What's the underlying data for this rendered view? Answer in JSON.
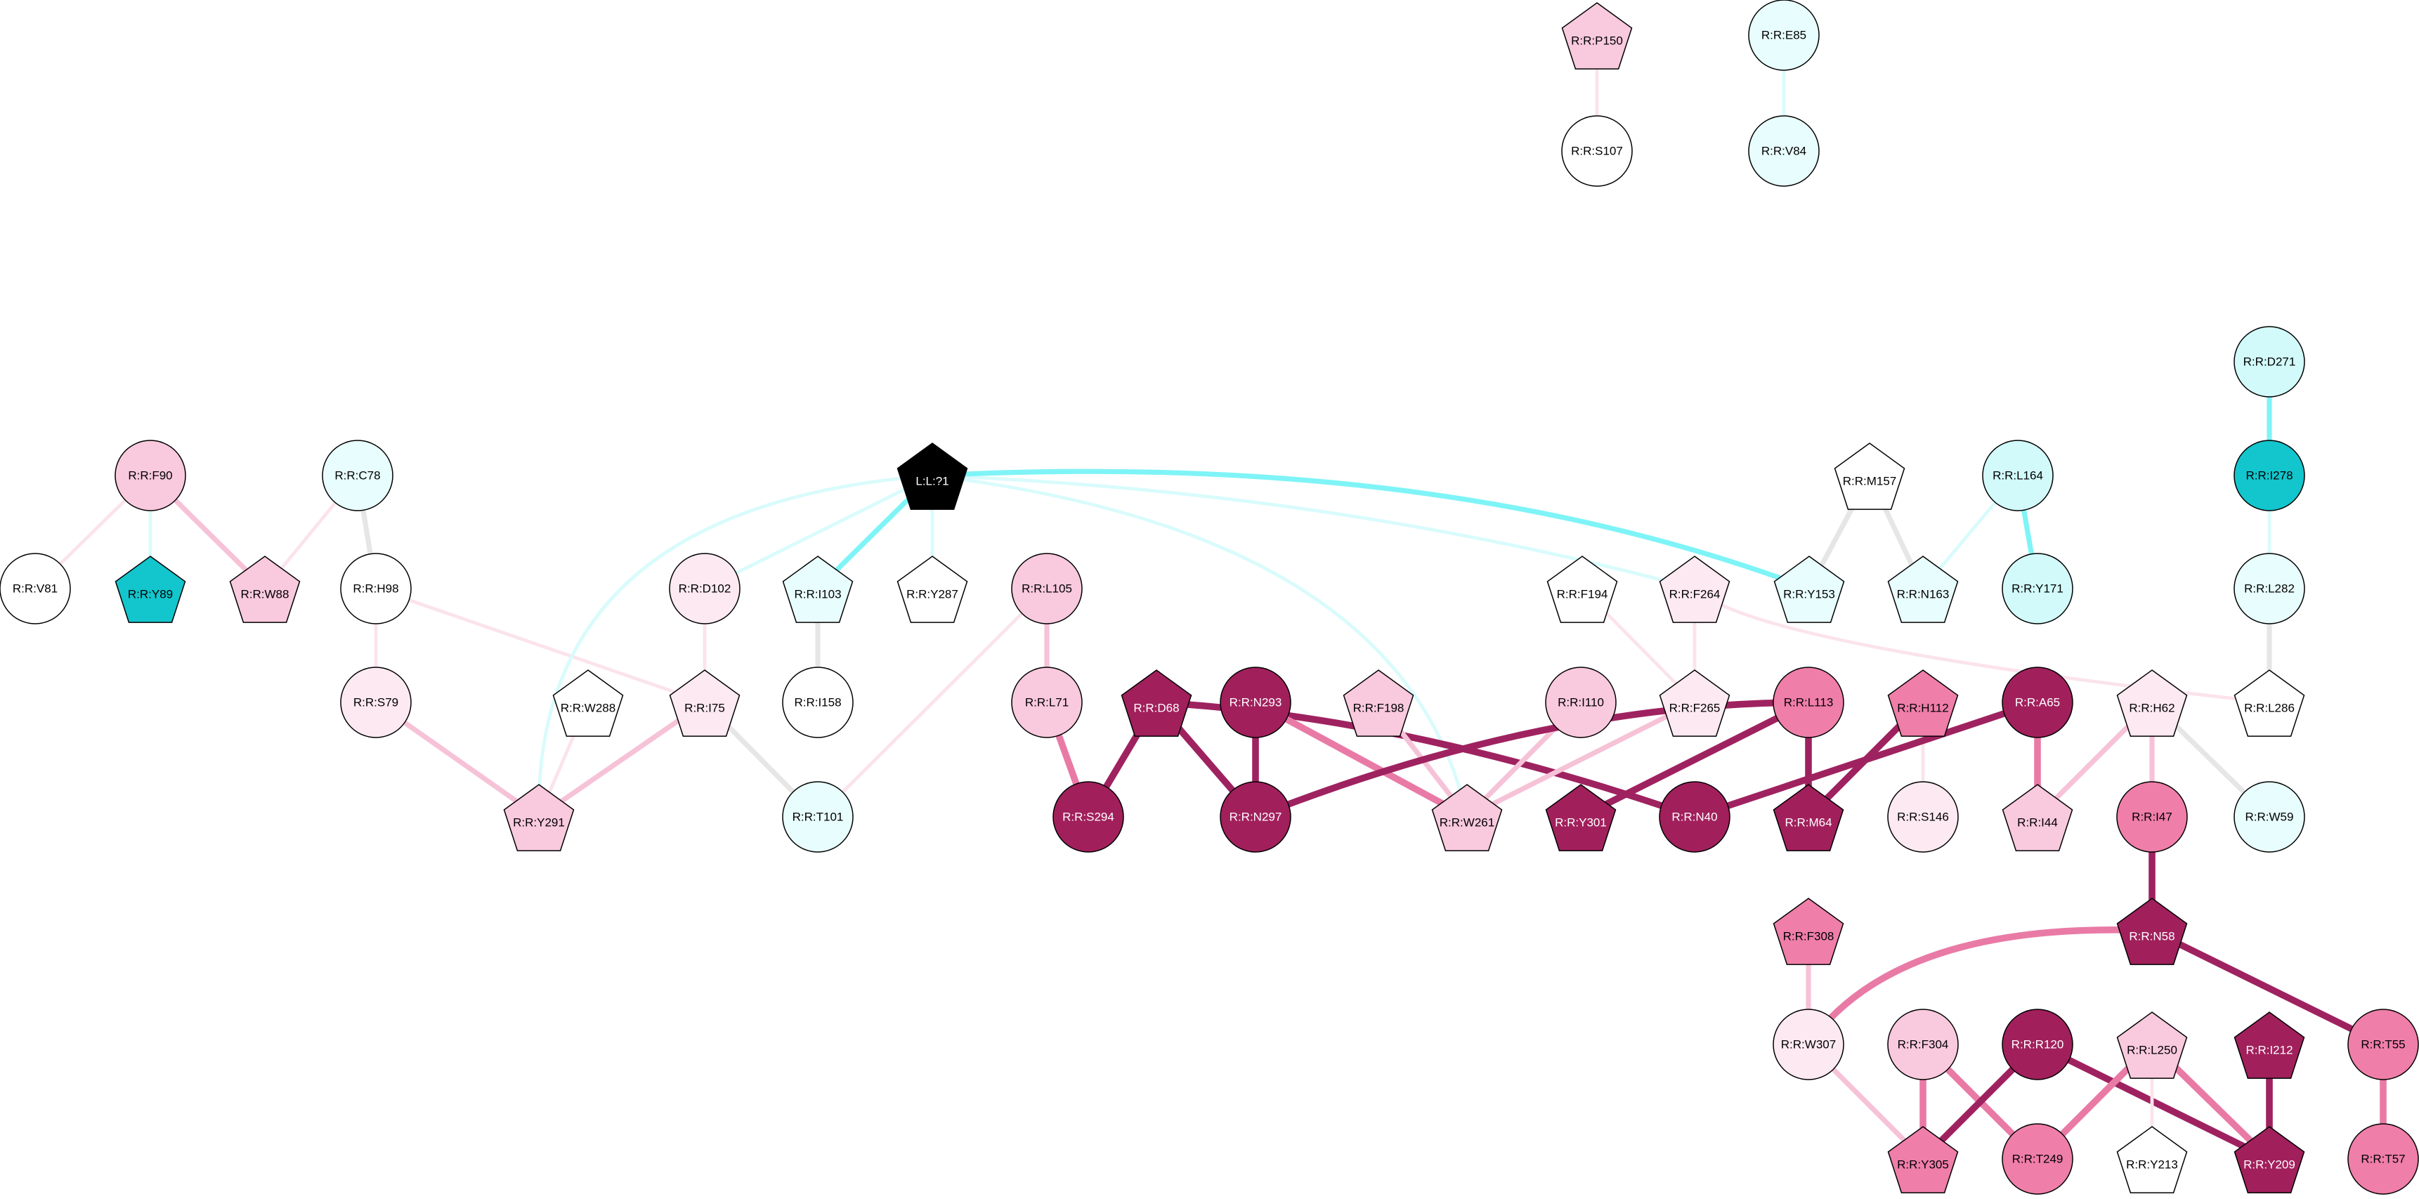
{
  "colors": {
    "white": "#ffffff",
    "pink_pale": "#fde9f1",
    "pink_light": "#f9c9dd",
    "pink_mid": "#ef7ea9",
    "magenta_dark": "#a1205c",
    "cyan_pale": "#e8fdfd",
    "cyan_light": "#d2fafa",
    "teal": "#13c5cc",
    "black": "#000000",
    "edge_gray": "#e6e6e6",
    "edge_cyan": "#7ff4f7",
    "edge_cyan_pale": "#d9fbfc",
    "edge_pink_pale": "#fbe3ec",
    "edge_pink_light": "#f6c2d7",
    "edge_pink_mid": "#e97aa6",
    "edge_magenta": "#9f2260"
  },
  "nodes": [
    {
      "id": "P150",
      "label": "R:R:P150",
      "shape": "pentagon",
      "fill": "pink_light"
    },
    {
      "id": "E85",
      "label": "R:R:E85",
      "shape": "circle",
      "fill": "cyan_pale"
    },
    {
      "id": "S107",
      "label": "R:R:S107",
      "shape": "circle",
      "fill": "white"
    },
    {
      "id": "V84",
      "label": "R:R:V84",
      "shape": "circle",
      "fill": "cyan_pale"
    },
    {
      "id": "D271",
      "label": "R:R:D271",
      "shape": "circle",
      "fill": "cyan_light"
    },
    {
      "id": "I278",
      "label": "R:R:I278",
      "shape": "circle",
      "fill": "teal"
    },
    {
      "id": "L282",
      "label": "R:R:L282",
      "shape": "circle",
      "fill": "cyan_pale"
    },
    {
      "id": "L286",
      "label": "R:R:L286",
      "shape": "pentagon",
      "fill": "white"
    },
    {
      "id": "F90",
      "label": "R:R:F90",
      "shape": "circle",
      "fill": "pink_light"
    },
    {
      "id": "C78",
      "label": "R:R:C78",
      "shape": "circle",
      "fill": "cyan_pale"
    },
    {
      "id": "V81",
      "label": "R:R:V81",
      "shape": "circle",
      "fill": "white"
    },
    {
      "id": "Y89",
      "label": "R:R:Y89",
      "shape": "pentagon",
      "fill": "teal"
    },
    {
      "id": "W88",
      "label": "R:R:W88",
      "shape": "pentagon",
      "fill": "pink_light"
    },
    {
      "id": "H98",
      "label": "R:R:H98",
      "shape": "circle",
      "fill": "white"
    },
    {
      "id": "S79",
      "label": "R:R:S79",
      "shape": "circle",
      "fill": "pink_pale"
    },
    {
      "id": "W288",
      "label": "R:R:W288",
      "shape": "pentagon",
      "fill": "white"
    },
    {
      "id": "I75",
      "label": "R:R:I75",
      "shape": "pentagon",
      "fill": "pink_pale"
    },
    {
      "id": "Y291",
      "label": "R:R:Y291",
      "shape": "pentagon",
      "fill": "pink_light"
    },
    {
      "id": "T101",
      "label": "R:R:T101",
      "shape": "circle",
      "fill": "cyan_pale"
    },
    {
      "id": "L1",
      "label": "L:L:?1",
      "shape": "pentagon",
      "fill": "black"
    },
    {
      "id": "D102",
      "label": "R:R:D102",
      "shape": "circle",
      "fill": "pink_pale"
    },
    {
      "id": "I103",
      "label": "R:R:I103",
      "shape": "pentagon",
      "fill": "cyan_pale"
    },
    {
      "id": "Y287",
      "label": "R:R:Y287",
      "shape": "pentagon",
      "fill": "white"
    },
    {
      "id": "I158",
      "label": "R:R:I158",
      "shape": "circle",
      "fill": "white"
    },
    {
      "id": "L105",
      "label": "R:R:L105",
      "shape": "circle",
      "fill": "pink_light"
    },
    {
      "id": "L71",
      "label": "R:R:L71",
      "shape": "circle",
      "fill": "pink_light"
    },
    {
      "id": "S294",
      "label": "R:R:S294",
      "shape": "circle",
      "fill": "magenta_dark"
    },
    {
      "id": "D68",
      "label": "R:R:D68",
      "shape": "pentagon",
      "fill": "magenta_dark"
    },
    {
      "id": "N293",
      "label": "R:R:N293",
      "shape": "circle",
      "fill": "magenta_dark"
    },
    {
      "id": "N297",
      "label": "R:R:N297",
      "shape": "circle",
      "fill": "magenta_dark"
    },
    {
      "id": "F198",
      "label": "R:R:F198",
      "shape": "pentagon",
      "fill": "pink_light"
    },
    {
      "id": "W261",
      "label": "R:R:W261",
      "shape": "pentagon",
      "fill": "pink_light"
    },
    {
      "id": "I110",
      "label": "R:R:I110",
      "shape": "circle",
      "fill": "pink_light"
    },
    {
      "id": "F194",
      "label": "R:R:F194",
      "shape": "pentagon",
      "fill": "white"
    },
    {
      "id": "F264",
      "label": "R:R:F264",
      "shape": "pentagon",
      "fill": "pink_pale"
    },
    {
      "id": "F265",
      "label": "R:R:F265",
      "shape": "pentagon",
      "fill": "pink_pale"
    },
    {
      "id": "M157",
      "label": "R:R:M157",
      "shape": "pentagon",
      "fill": "white"
    },
    {
      "id": "Y153",
      "label": "R:R:Y153",
      "shape": "pentagon",
      "fill": "cyan_pale"
    },
    {
      "id": "N163",
      "label": "R:R:N163",
      "shape": "pentagon",
      "fill": "cyan_pale"
    },
    {
      "id": "L164",
      "label": "R:R:L164",
      "shape": "circle",
      "fill": "cyan_light"
    },
    {
      "id": "Y171",
      "label": "R:R:Y171",
      "shape": "circle",
      "fill": "cyan_light"
    },
    {
      "id": "L113",
      "label": "R:R:L113",
      "shape": "circle",
      "fill": "pink_mid"
    },
    {
      "id": "Y301",
      "label": "R:R:Y301",
      "shape": "pentagon",
      "fill": "magenta_dark"
    },
    {
      "id": "N40",
      "label": "R:R:N40",
      "shape": "circle",
      "fill": "magenta_dark"
    },
    {
      "id": "H112",
      "label": "R:R:H112",
      "shape": "pentagon",
      "fill": "pink_mid"
    },
    {
      "id": "M64",
      "label": "R:R:M64",
      "shape": "pentagon",
      "fill": "magenta_dark"
    },
    {
      "id": "S146",
      "label": "R:R:S146",
      "shape": "circle",
      "fill": "pink_pale"
    },
    {
      "id": "A65",
      "label": "R:R:A65",
      "shape": "circle",
      "fill": "magenta_dark"
    },
    {
      "id": "I44",
      "label": "R:R:I44",
      "shape": "pentagon",
      "fill": "pink_light"
    },
    {
      "id": "H62",
      "label": "R:R:H62",
      "shape": "pentagon",
      "fill": "pink_pale"
    },
    {
      "id": "I47",
      "label": "R:R:I47",
      "shape": "circle",
      "fill": "pink_mid"
    },
    {
      "id": "W59",
      "label": "R:R:W59",
      "shape": "circle",
      "fill": "cyan_pale"
    },
    {
      "id": "N58",
      "label": "R:R:N58",
      "shape": "pentagon",
      "fill": "magenta_dark"
    },
    {
      "id": "F308",
      "label": "R:R:F308",
      "shape": "pentagon",
      "fill": "pink_mid"
    },
    {
      "id": "W307",
      "label": "R:R:W307",
      "shape": "circle",
      "fill": "pink_pale"
    },
    {
      "id": "F304",
      "label": "R:R:F304",
      "shape": "circle",
      "fill": "pink_light"
    },
    {
      "id": "R120",
      "label": "R:R:R120",
      "shape": "circle",
      "fill": "magenta_dark"
    },
    {
      "id": "L250",
      "label": "R:R:L250",
      "shape": "pentagon",
      "fill": "pink_light"
    },
    {
      "id": "I212",
      "label": "R:R:I212",
      "shape": "pentagon",
      "fill": "magenta_dark"
    },
    {
      "id": "T55",
      "label": "R:R:T55",
      "shape": "circle",
      "fill": "pink_mid"
    },
    {
      "id": "Y305",
      "label": "R:R:Y305",
      "shape": "pentagon",
      "fill": "pink_mid"
    },
    {
      "id": "T249",
      "label": "R:R:T249",
      "shape": "circle",
      "fill": "pink_mid"
    },
    {
      "id": "Y213",
      "label": "R:R:Y213",
      "shape": "pentagon",
      "fill": "white"
    },
    {
      "id": "Y209",
      "label": "R:R:Y209",
      "shape": "pentagon",
      "fill": "magenta_dark"
    },
    {
      "id": "T57",
      "label": "R:R:T57",
      "shape": "circle",
      "fill": "pink_mid"
    }
  ],
  "edges": [
    {
      "from": "P150",
      "to": "S107",
      "color": "edge_pink_pale",
      "weight": 2
    },
    {
      "from": "E85",
      "to": "V84",
      "color": "edge_cyan_pale",
      "weight": 2
    },
    {
      "from": "D271",
      "to": "I278",
      "color": "edge_cyan",
      "weight": 3
    },
    {
      "from": "I278",
      "to": "L282",
      "color": "edge_cyan_pale",
      "weight": 2
    },
    {
      "from": "L282",
      "to": "L286",
      "color": "edge_gray",
      "weight": 3
    },
    {
      "from": "F90",
      "to": "V81",
      "color": "edge_pink_pale",
      "weight": 2
    },
    {
      "from": "F90",
      "to": "Y89",
      "color": "edge_cyan_pale",
      "weight": 2
    },
    {
      "from": "F90",
      "to": "W88",
      "color": "edge_pink_light",
      "weight": 3
    },
    {
      "from": "C78",
      "to": "W88",
      "color": "edge_pink_pale",
      "weight": 2
    },
    {
      "from": "C78",
      "to": "H98",
      "color": "edge_gray",
      "weight": 3
    },
    {
      "from": "H98",
      "to": "S79",
      "color": "edge_pink_pale",
      "weight": 2
    },
    {
      "from": "H98",
      "to": "I75",
      "color": "edge_pink_pale",
      "weight": 2
    },
    {
      "from": "S79",
      "to": "Y291",
      "color": "edge_pink_light",
      "weight": 3
    },
    {
      "from": "W288",
      "to": "Y291",
      "color": "edge_pink_pale",
      "weight": 2
    },
    {
      "from": "I75",
      "to": "Y291",
      "color": "edge_pink_light",
      "weight": 3
    },
    {
      "from": "I75",
      "to": "T101",
      "color": "edge_gray",
      "weight": 3
    },
    {
      "from": "D102",
      "to": "I75",
      "color": "edge_pink_pale",
      "weight": 2
    },
    {
      "from": "L1",
      "to": "D102",
      "color": "edge_cyan_pale",
      "weight": 2
    },
    {
      "from": "L1",
      "to": "I103",
      "color": "edge_cyan",
      "weight": 3
    },
    {
      "from": "L1",
      "to": "Y287",
      "color": "edge_cyan_pale",
      "weight": 2
    },
    {
      "from": "L1",
      "to": "Y291",
      "color": "edge_cyan_pale",
      "weight": 2,
      "curve": true
    },
    {
      "from": "L1",
      "to": "W261",
      "color": "edge_cyan_pale",
      "weight": 2,
      "curve": true
    },
    {
      "from": "L1",
      "to": "F264",
      "color": "edge_cyan_pale",
      "weight": 2,
      "curve": true
    },
    {
      "from": "L1",
      "to": "Y153",
      "color": "edge_cyan",
      "weight": 3,
      "curve": true
    },
    {
      "from": "I103",
      "to": "I158",
      "color": "edge_gray",
      "weight": 3
    },
    {
      "from": "L105",
      "to": "L71",
      "color": "edge_pink_light",
      "weight": 3
    },
    {
      "from": "L105",
      "to": "T101",
      "color": "edge_pink_pale",
      "weight": 2
    },
    {
      "from": "L71",
      "to": "S294",
      "color": "edge_pink_mid",
      "weight": 4
    },
    {
      "from": "D68",
      "to": "S294",
      "color": "edge_magenta",
      "weight": 4
    },
    {
      "from": "D68",
      "to": "N297",
      "color": "edge_magenta",
      "weight": 4
    },
    {
      "from": "D68",
      "to": "N40",
      "color": "edge_magenta",
      "weight": 4,
      "curve": true
    },
    {
      "from": "N293",
      "to": "N297",
      "color": "edge_magenta",
      "weight": 4
    },
    {
      "from": "N293",
      "to": "W261",
      "color": "edge_pink_mid",
      "weight": 4
    },
    {
      "from": "F198",
      "to": "W261",
      "color": "edge_pink_light",
      "weight": 3
    },
    {
      "from": "I110",
      "to": "W261",
      "color": "edge_pink_light",
      "weight": 3
    },
    {
      "from": "F265",
      "to": "W261",
      "color": "edge_pink_light",
      "weight": 3
    },
    {
      "from": "F194",
      "to": "F265",
      "color": "edge_pink_pale",
      "weight": 2
    },
    {
      "from": "F264",
      "to": "F265",
      "color": "edge_pink_pale",
      "weight": 2
    },
    {
      "from": "F264",
      "to": "L286",
      "color": "edge_pink_pale",
      "weight": 2,
      "curve": true
    },
    {
      "from": "M157",
      "to": "Y153",
      "color": "edge_gray",
      "weight": 3
    },
    {
      "from": "M157",
      "to": "N163",
      "color": "edge_gray",
      "weight": 3
    },
    {
      "from": "L164",
      "to": "N163",
      "color": "edge_cyan_pale",
      "weight": 2
    },
    {
      "from": "L164",
      "to": "Y171",
      "color": "edge_cyan",
      "weight": 3
    },
    {
      "from": "L113",
      "to": "N297",
      "color": "edge_magenta",
      "weight": 4,
      "curve": true
    },
    {
      "from": "L113",
      "to": "Y301",
      "color": "edge_magenta",
      "weight": 4
    },
    {
      "from": "L113",
      "to": "M64",
      "color": "edge_magenta",
      "weight": 4
    },
    {
      "from": "H112",
      "to": "M64",
      "color": "edge_magenta",
      "weight": 4
    },
    {
      "from": "H112",
      "to": "S146",
      "color": "edge_pink_pale",
      "weight": 2
    },
    {
      "from": "A65",
      "to": "N40",
      "color": "edge_magenta",
      "weight": 4
    },
    {
      "from": "A65",
      "to": "I44",
      "color": "edge_pink_mid",
      "weight": 4
    },
    {
      "from": "H62",
      "to": "I44",
      "color": "edge_pink_light",
      "weight": 3
    },
    {
      "from": "H62",
      "to": "I47",
      "color": "edge_pink_light",
      "weight": 3
    },
    {
      "from": "H62",
      "to": "W59",
      "color": "edge_gray",
      "weight": 3
    },
    {
      "from": "I47",
      "to": "N58",
      "color": "edge_magenta",
      "weight": 4
    },
    {
      "from": "N58",
      "to": "W307",
      "color": "edge_pink_mid",
      "weight": 4,
      "curve": true
    },
    {
      "from": "N58",
      "to": "T55",
      "color": "edge_magenta",
      "weight": 4
    },
    {
      "from": "F308",
      "to": "W307",
      "color": "edge_pink_light",
      "weight": 3
    },
    {
      "from": "W307",
      "to": "Y305",
      "color": "edge_pink_light",
      "weight": 3
    },
    {
      "from": "F304",
      "to": "Y305",
      "color": "edge_pink_mid",
      "weight": 4
    },
    {
      "from": "F304",
      "to": "T249",
      "color": "edge_pink_mid",
      "weight": 4
    },
    {
      "from": "R120",
      "to": "Y305",
      "color": "edge_magenta",
      "weight": 4
    },
    {
      "from": "R120",
      "to": "Y209",
      "color": "edge_magenta",
      "weight": 4
    },
    {
      "from": "L250",
      "to": "T249",
      "color": "edge_pink_mid",
      "weight": 4
    },
    {
      "from": "L250",
      "to": "Y213",
      "color": "edge_pink_pale",
      "weight": 2
    },
    {
      "from": "L250",
      "to": "Y209",
      "color": "edge_pink_mid",
      "weight": 4
    },
    {
      "from": "I212",
      "to": "Y209",
      "color": "edge_magenta",
      "weight": 4
    },
    {
      "from": "T55",
      "to": "T57",
      "color": "edge_pink_mid",
      "weight": 4
    }
  ]
}
